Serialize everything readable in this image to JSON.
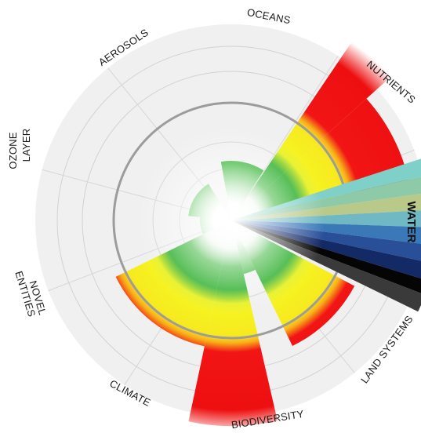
{
  "labels": {
    "oceans": "OCEANS",
    "nutrients": "NUTRIENTS",
    "water": "WATER",
    "land_systems": "LAND SYSTEMS",
    "biodiversity": "BIODIVERSITY",
    "climate": "CLIMATE",
    "novel_line1": "NOVEL",
    "novel_line2": "ENTITIES",
    "ozone_line1": "OZONE",
    "ozone_line2": "LAYER",
    "aerosols": "AEROSOLS"
  },
  "colors": {
    "background": "#f0f0f0",
    "gridline": "#cfcfcf",
    "boundary_ring": "#9a9a9a",
    "safe": "#18a818",
    "zone_of_uncertainty": "#f4ee1c",
    "high_risk": "#f01010"
  }
}
